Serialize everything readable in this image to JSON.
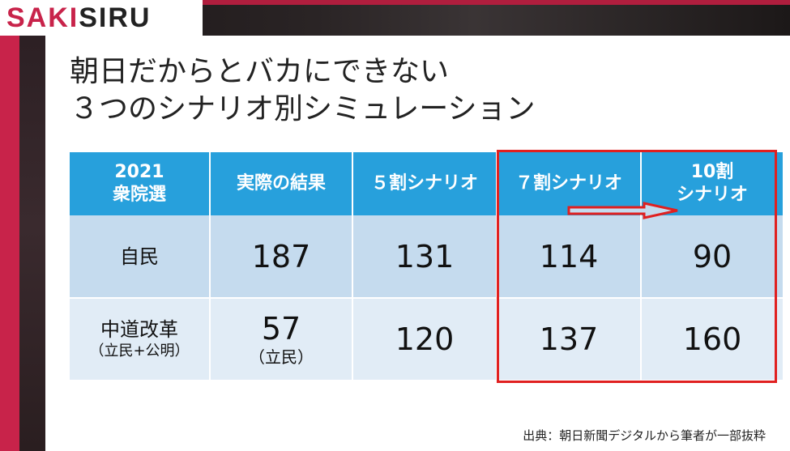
{
  "logo": {
    "part1": "SAKI",
    "part2": "SIRU"
  },
  "title": {
    "line1": "朝日だからとバカにできない",
    "line2": "３つのシナリオ別シミュレーション"
  },
  "table": {
    "headers": [
      {
        "line1": "2021",
        "line2": "衆院選"
      },
      {
        "line1": "実際の結果",
        "line2": ""
      },
      {
        "line1": "５割シナリオ",
        "line2": ""
      },
      {
        "line1": "７割シナリオ",
        "line2": ""
      },
      {
        "line1": "10割",
        "line2": "シナリオ"
      }
    ],
    "rows": [
      {
        "party": "自民",
        "party_sub": "",
        "actual": "187",
        "actual_sub": "",
        "s50": "131",
        "s70": "114",
        "s100": "90"
      },
      {
        "party": "中道改革",
        "party_sub": "（立民+公明）",
        "actual": "57",
        "actual_sub": "（立民）",
        "s50": "120",
        "s70": "137",
        "s100": "160"
      }
    ]
  },
  "source": "出典：朝日新聞デジタルから筆者が一部抜粋",
  "colors": {
    "header_bg": "#27a0dc",
    "row1_bg": "#c5dbee",
    "row2_bg": "#e1ecf6",
    "highlight": "#e02020",
    "brand": "#c8234a"
  }
}
